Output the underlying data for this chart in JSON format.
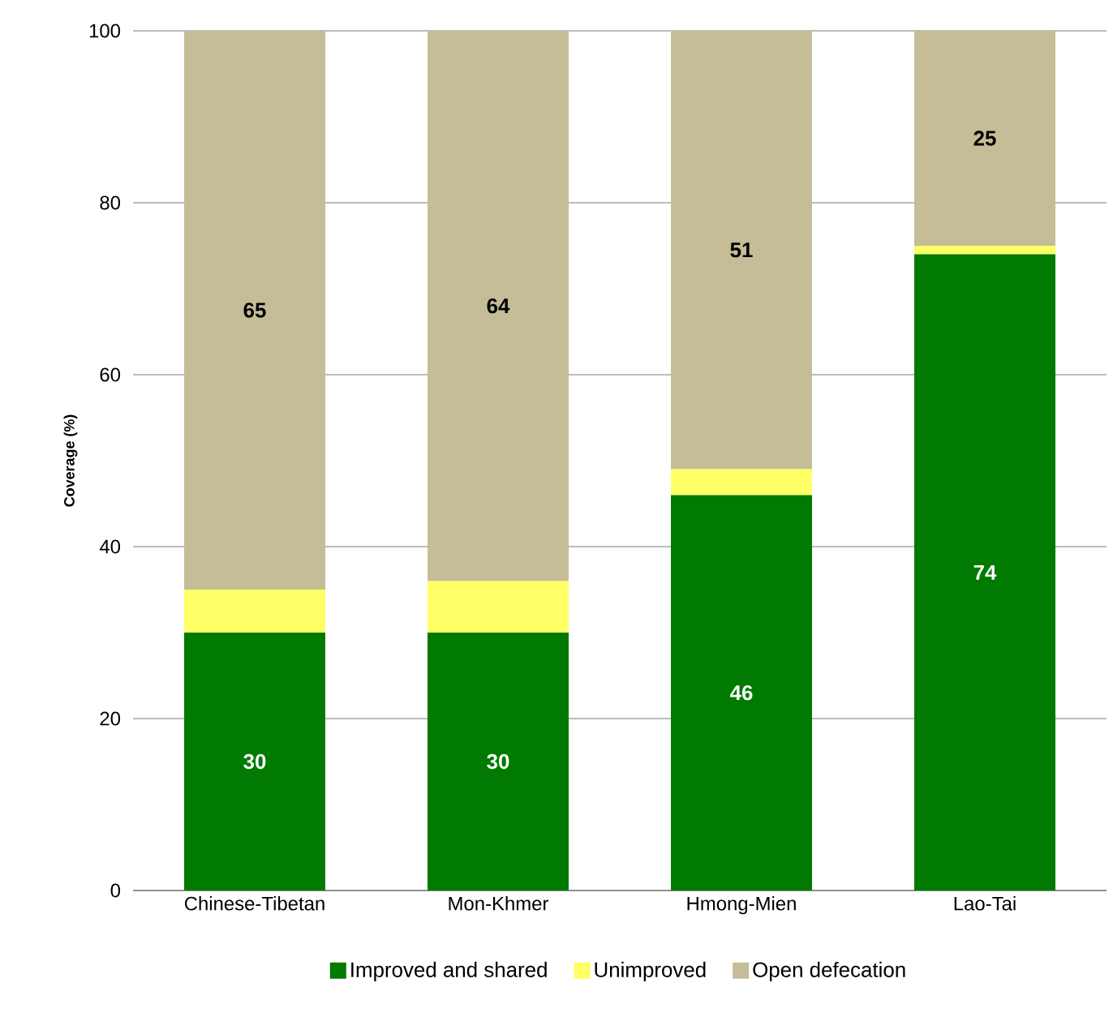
{
  "chart_data": {
    "type": "bar",
    "stacked": true,
    "ylabel": "Coverage (%)",
    "categories": [
      "Chinese-Tibetan",
      "Mon-Khmer",
      "Hmong-Mien",
      "Lao-Tai"
    ],
    "series": [
      {
        "name": "Improved and shared",
        "color": "#007a00",
        "values": [
          30,
          30,
          46,
          74
        ],
        "value_labels": [
          "30",
          "30",
          "46",
          "74"
        ]
      },
      {
        "name": "Unimproved",
        "color": "#ffff66",
        "values": [
          5,
          6,
          3,
          1
        ]
      },
      {
        "name": "Open defecation",
        "color": "#c4bd97",
        "values": [
          65,
          64,
          51,
          25
        ],
        "value_labels": [
          "65",
          "64",
          "51",
          "25"
        ]
      }
    ],
    "ylim": [
      0,
      100
    ],
    "yticks": [
      0,
      20,
      40,
      60,
      80,
      100
    ],
    "grid": "y",
    "legend": "bottom"
  }
}
